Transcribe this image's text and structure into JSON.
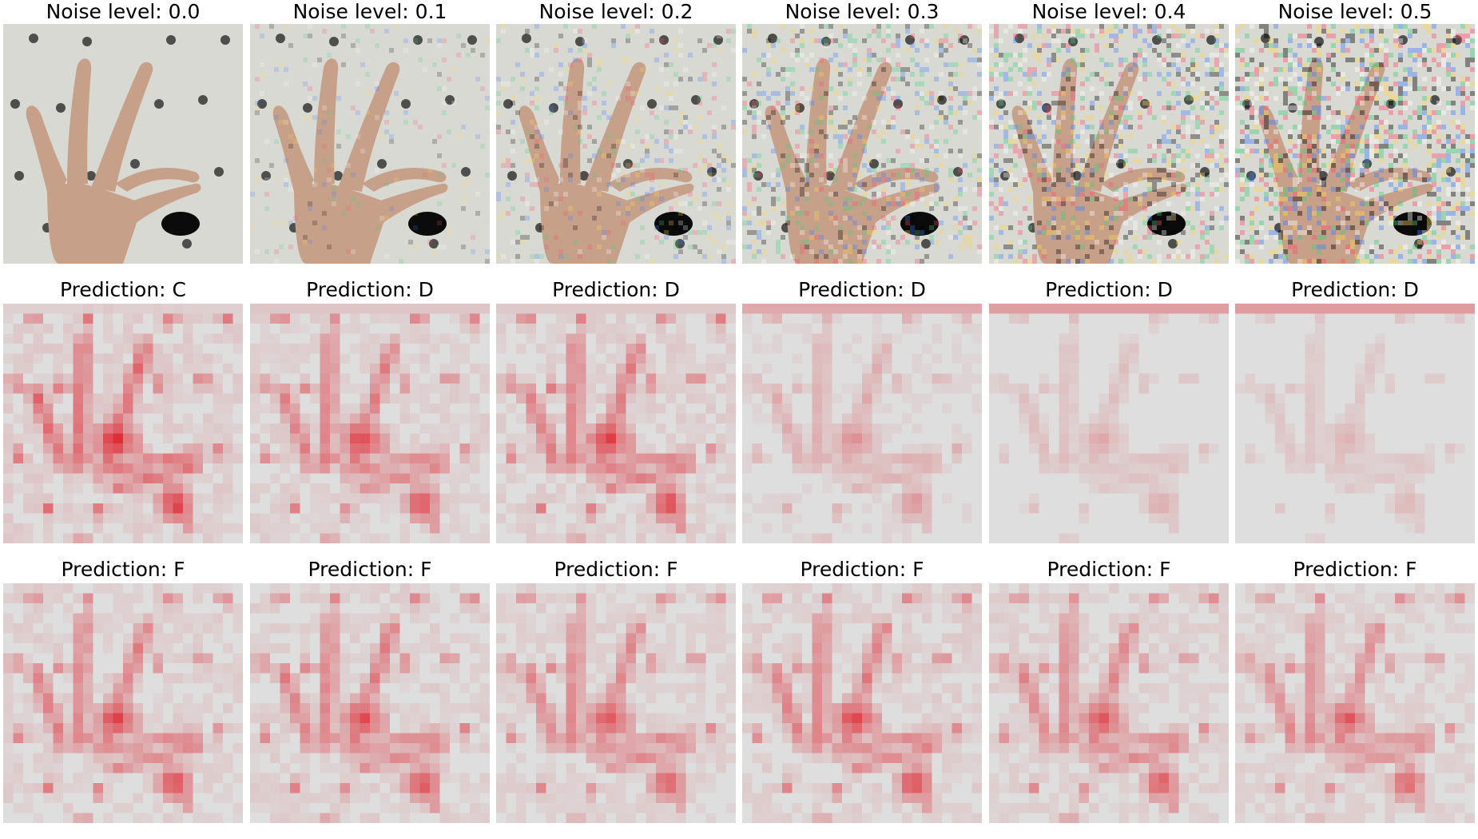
{
  "noise_row": {
    "titles": [
      "Noise level: 0.0",
      "Noise level: 0.1",
      "Noise level: 0.2",
      "Noise level: 0.3",
      "Noise level: 0.4",
      "Noise level: 0.5"
    ],
    "noise_levels": [
      0.0,
      0.1,
      0.2,
      0.3,
      0.4,
      0.5
    ],
    "image_description_key": "hand-gesture-photo"
  },
  "prediction_row_1": {
    "titles": [
      "Prediction: C",
      "Prediction: D",
      "Prediction: D",
      "Prediction: D",
      "Prediction: D",
      "Prediction: D"
    ],
    "heatmap_intensity": [
      1.0,
      0.85,
      0.9,
      0.45,
      0.3,
      0.25
    ]
  },
  "prediction_row_2": {
    "titles": [
      "Prediction: F",
      "Prediction: F",
      "Prediction: F",
      "Prediction: F",
      "Prediction: F",
      "Prediction: F"
    ],
    "heatmap_intensity": [
      0.85,
      0.85,
      0.8,
      0.85,
      0.8,
      0.75
    ]
  },
  "colors": {
    "background": "#ffffff",
    "wall": "#d9d9d4",
    "skin": "#c7a08a",
    "dot": "#2a2a2a",
    "heat": "#e0141e",
    "heat_bg": "#dedede"
  }
}
